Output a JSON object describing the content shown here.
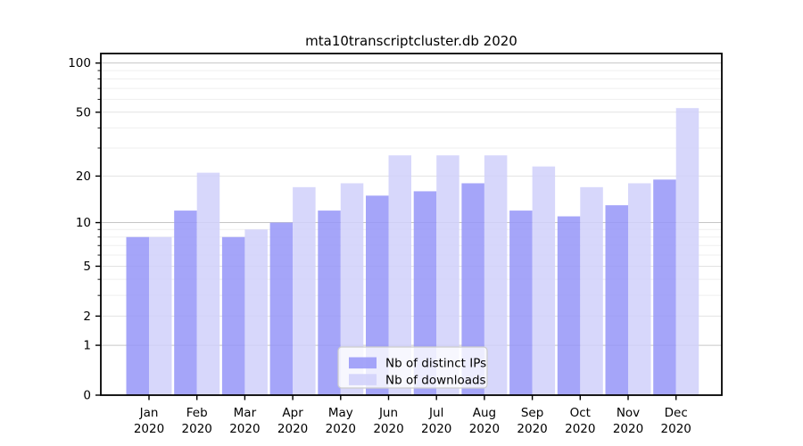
{
  "title": "mta10transcriptcluster.db 2020",
  "chart_data": {
    "type": "bar",
    "title": "mta10transcriptcluster.db 2020",
    "categories": [
      "Jan",
      "Feb",
      "Mar",
      "Apr",
      "May",
      "Jun",
      "Jul",
      "Aug",
      "Sep",
      "Oct",
      "Nov",
      "Dec"
    ],
    "year": "2020",
    "series": [
      {
        "name": "Nb of distinct IPs",
        "color": "#9595f8",
        "values": [
          8,
          12,
          8,
          10,
          12,
          15,
          16,
          18,
          12,
          11,
          13,
          19
        ]
      },
      {
        "name": "Nb of downloads",
        "color": "#d0d0fa",
        "values": [
          8,
          21,
          9,
          17,
          18,
          27,
          27,
          27,
          23,
          17,
          18,
          53
        ]
      }
    ],
    "yscale": "log1p",
    "ymax": 114.3,
    "ylim": [
      0,
      114.3
    ],
    "yticks": [
      0,
      1,
      2,
      5,
      10,
      20,
      50,
      100
    ],
    "decade_ticks": [
      1,
      10,
      100
    ],
    "minor_ticks": [
      3,
      4,
      6,
      7,
      8,
      9,
      30,
      40,
      60,
      70,
      80,
      90
    ],
    "grid": true,
    "legend_position": "lower center",
    "xlabel": "",
    "ylabel": "",
    "colors": {
      "bar_opacity": 0.85,
      "grid_major": "#c6c6c6",
      "grid_mid": "#e2e2e2",
      "grid_minor": "#efefef",
      "axis": "#000000",
      "text": "#000000",
      "legend_border": "#cccccc",
      "background": "#ffffff"
    }
  }
}
